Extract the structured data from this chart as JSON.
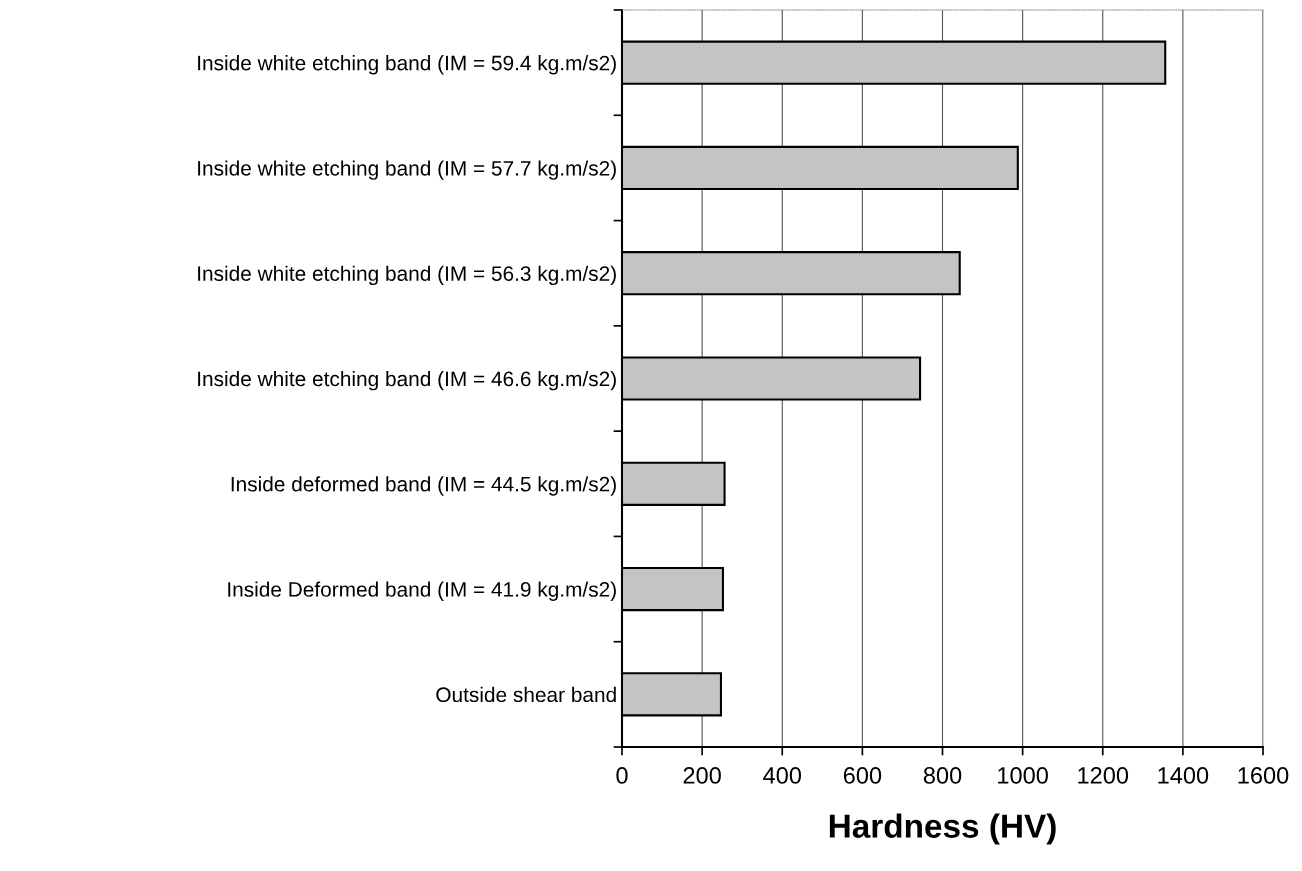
{
  "chart_data": {
    "type": "bar",
    "orientation": "horizontal",
    "xlabel": "Hardness (HV)",
    "categories": [
      "Inside white etching band (IM = 59.4 kg.m/s2)",
      "Inside white etching band (IM = 57.7 kg.m/s2)",
      "Inside white etching band (IM = 56.3 kg.m/s2)",
      "Inside white etching band (IM = 46.6 kg.m/s2)",
      "Inside deformed band (IM = 44.5 kg.m/s2)",
      "Inside Deformed band (IM = 41.9 kg.m/s2)",
      "Outside shear band"
    ],
    "values": [
      1356,
      988,
      843,
      744,
      256,
      252,
      247
    ],
    "color": "#c4c4c4",
    "xlim": [
      0,
      1600
    ],
    "xticks": [
      0,
      200,
      400,
      600,
      800,
      1000,
      1200,
      1400,
      1600
    ],
    "grid": "x",
    "legend": false
  }
}
